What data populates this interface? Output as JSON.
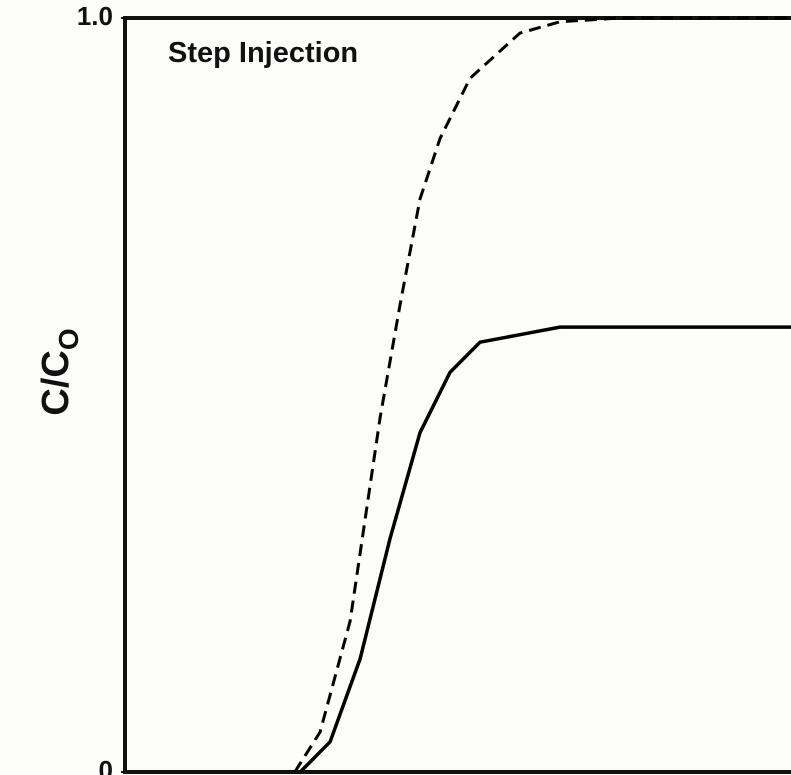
{
  "chart_data": {
    "type": "line",
    "annotation": "Step Injection",
    "ylabel": "C/C",
    "ylabel_subscript": "O",
    "xlim": [
      0,
      100
    ],
    "ylim": [
      0,
      1
    ],
    "yticks": [
      0,
      {
        "value": 1,
        "label": "1.0"
      }
    ],
    "series": [
      {
        "color": "#000000",
        "dashed": true,
        "x": [
          25.5,
          29.3,
          33.8,
          38.3,
          41.3,
          44.3,
          47.3,
          51.8,
          59.3,
          65.3,
          74.3,
          100
        ],
        "values": [
          0,
          0.053,
          0.2,
          0.47,
          0.62,
          0.76,
          0.84,
          0.92,
          0.98,
          0.995,
          1.0,
          1.0
        ]
      },
      {
        "color": "#000000",
        "dashed": false,
        "x": [
          26.3,
          30.8,
          35.3,
          39.8,
          44.3,
          48.8,
          53.3,
          59.3,
          65.3,
          74.3,
          100
        ],
        "values": [
          0,
          0.04,
          0.15,
          0.31,
          0.45,
          0.53,
          0.57,
          0.58,
          0.59,
          0.59,
          0.59
        ]
      }
    ]
  }
}
